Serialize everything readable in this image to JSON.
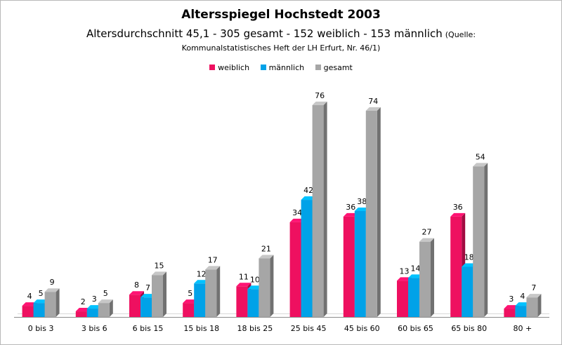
{
  "chart_data": {
    "type": "bar",
    "title": "Altersspiegel Hochstedt 2003",
    "subtitle": "Altersdurchschnitt 45,1 - 305 gesamt - 152 weiblich - 153 männlich",
    "source_open": "(Quelle:",
    "source_rest": "Kommunalstatistisches Heft der LH Erfurt, Nr. 46/1)",
    "categories": [
      "0 bis 3",
      "3 bis 6",
      "6 bis 15",
      "15 bis 18",
      "18 bis 25",
      "25 bis 45",
      "45 bis 60",
      "60 bis 65",
      "65 bis 80",
      "80 +"
    ],
    "series": [
      {
        "name": "weiblich",
        "color": "#ee1060",
        "values": [
          4,
          2,
          8,
          5,
          11,
          34,
          36,
          13,
          36,
          3
        ]
      },
      {
        "name": "männlich",
        "color": "#00a2e8",
        "values": [
          5,
          3,
          7,
          12,
          10,
          42,
          38,
          14,
          18,
          4
        ]
      },
      {
        "name": "gesamt",
        "color": "#a6a6a6",
        "values": [
          9,
          5,
          15,
          17,
          21,
          76,
          74,
          27,
          54,
          7
        ]
      }
    ],
    "ylim": [
      0,
      80
    ],
    "legend_position": "top-center",
    "grid": false,
    "style": "3d-column"
  }
}
